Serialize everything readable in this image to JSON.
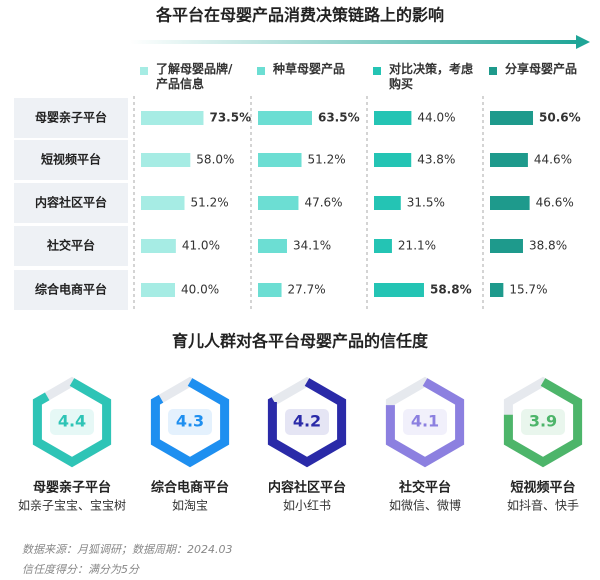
{
  "impact": {
    "title": "各平台在母婴产品消费决策链路上的影响",
    "columns": [
      {
        "name": "了解母婴品牌/产品信息",
        "color": "#a6ece4"
      },
      {
        "name": "种草母婴产品",
        "color": "#6cded3"
      },
      {
        "name": "对比决策，考虑购买",
        "color": "#24c4b4"
      },
      {
        "name": "分享母婴产品",
        "color": "#1e9a8c"
      }
    ],
    "rows": [
      {
        "name": "母婴亲子平台",
        "values": [
          73.5,
          63.5,
          44.0,
          50.6
        ],
        "value_labels": [
          "73.5%",
          "63.5%",
          "44.0%",
          "50.6%"
        ]
      },
      {
        "name": "短视频平台",
        "values": [
          58.0,
          51.2,
          43.8,
          44.6
        ],
        "value_labels": [
          "58.0%",
          "51.2%",
          "43.8%",
          "44.6%"
        ]
      },
      {
        "name": "内容社区平台",
        "values": [
          51.2,
          47.6,
          31.5,
          46.6
        ],
        "value_labels": [
          "51.2%",
          "47.6%",
          "31.5%",
          "46.6%"
        ]
      },
      {
        "name": "社交平台",
        "values": [
          41.0,
          34.1,
          21.1,
          38.8
        ],
        "value_labels": [
          "41.0%",
          "34.1%",
          "21.1%",
          "38.8%"
        ]
      },
      {
        "name": "综合电商平台",
        "values": [
          40.0,
          27.7,
          58.8,
          15.7
        ],
        "value_labels": [
          "40.0%",
          "27.7%",
          "58.8%",
          "15.7%"
        ]
      }
    ]
  },
  "trust": {
    "title": "育儿人群对各平台母婴产品的信任度",
    "items": [
      {
        "name": "母婴亲子平台",
        "examples": "如亲子宝宝、宝宝树",
        "score": 4.4,
        "color": "#2ec4b6"
      },
      {
        "name": "综合电商平台",
        "examples": "如淘宝",
        "score": 4.3,
        "color": "#1e8ff0"
      },
      {
        "name": "内容社区平台",
        "examples": "如小红书",
        "score": 4.2,
        "color": "#2a2aa8"
      },
      {
        "name": "社交平台",
        "examples": "如微信、微博",
        "score": 4.1,
        "color": "#8c80e0"
      },
      {
        "name": "短视频平台",
        "examples": "如抖音、快手",
        "score": 3.9,
        "color": "#4db56a"
      }
    ]
  },
  "notes": [
    "数据来源：月狐调研；数据周期：2024.03",
    "信任度得分：满分为5分"
  ]
}
